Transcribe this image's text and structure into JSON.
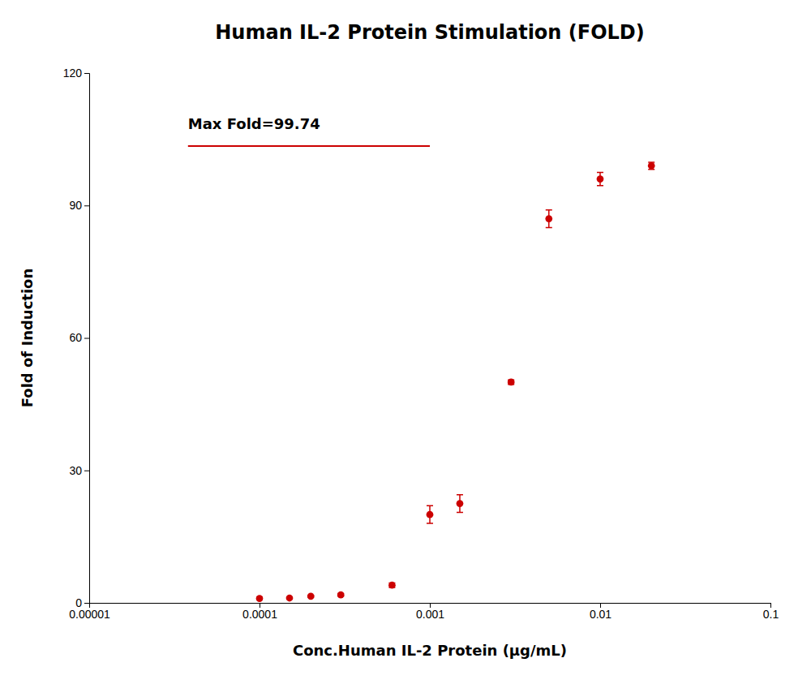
{
  "chart_data": {
    "type": "scatter",
    "title": "Human IL-2 Protein Stimulation (FOLD)",
    "xlabel": "Conc.Human IL-2 Protein (μg/mL)",
    "ylabel": "Fold of Induction",
    "annotation": "Max Fold=99.74",
    "x": [
      0.0001,
      0.00015,
      0.0002,
      0.0003,
      0.0006,
      0.001,
      0.0015,
      0.003,
      0.005,
      0.01,
      0.02
    ],
    "values": [
      1.0,
      1.1,
      1.5,
      1.8,
      4.0,
      20.0,
      22.5,
      50.0,
      87.0,
      96.0,
      99.0
    ],
    "errors": [
      0.3,
      0.2,
      0.2,
      0.3,
      0.5,
      2.0,
      2.0,
      0.5,
      2.0,
      1.5,
      0.8
    ],
    "color": "#cc0000",
    "marker": "circle",
    "log": "x",
    "xlim": [
      1e-05,
      0.1
    ],
    "xticks": [
      1e-05,
      0.0001,
      0.001,
      0.01,
      0.1
    ],
    "ylim": [
      0,
      120
    ],
    "yticks": [
      0,
      30,
      60,
      90,
      120
    ],
    "grid": false
  }
}
